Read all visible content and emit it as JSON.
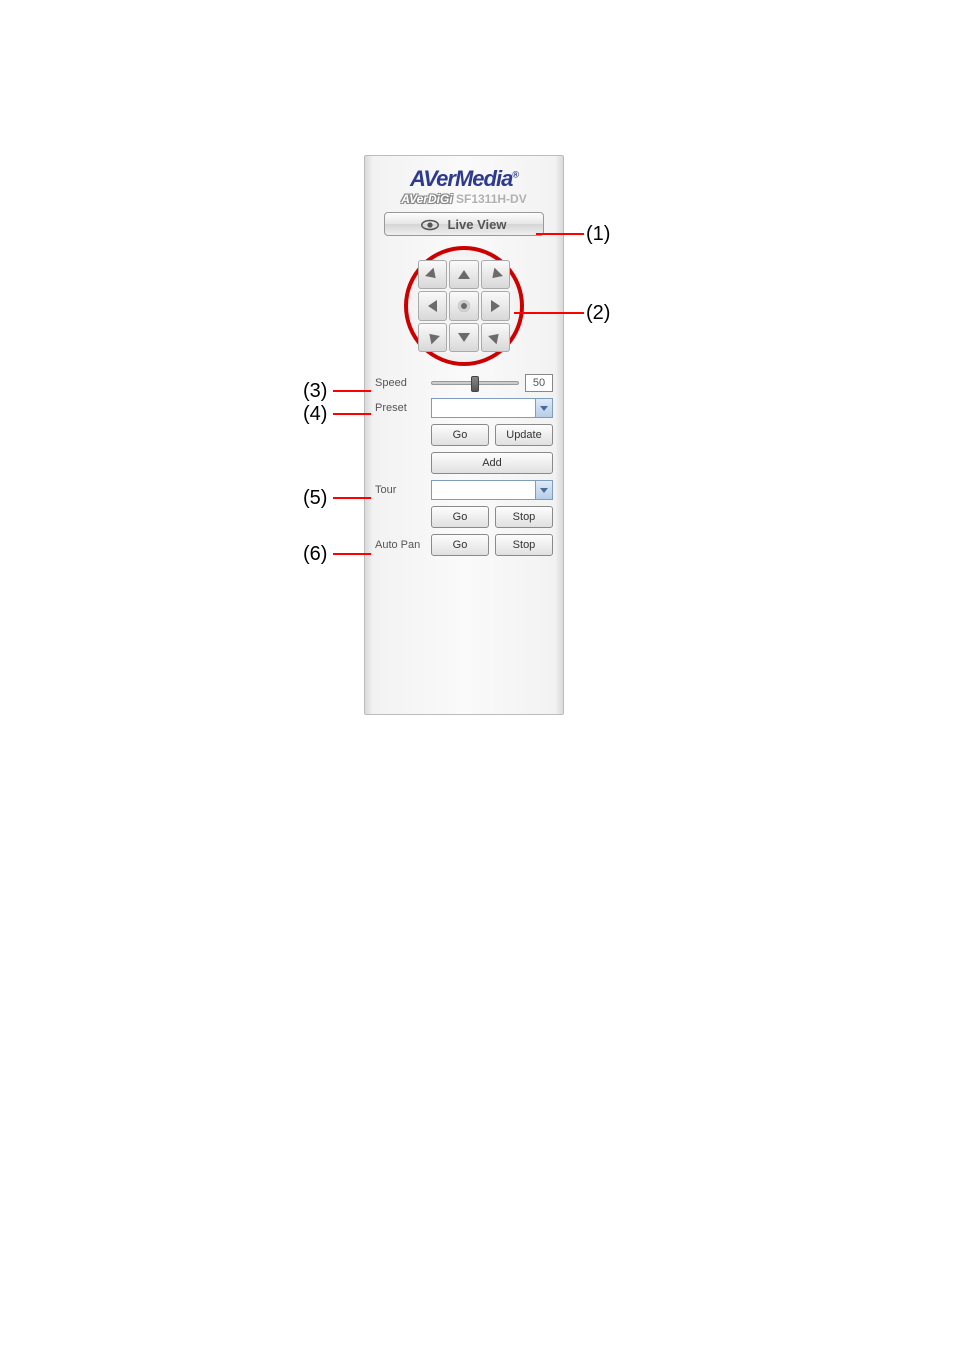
{
  "brand": {
    "main": "AVerMedia",
    "reg": "®",
    "sub_prefix": "AVerDiGi",
    "model": "SF1311H-DV"
  },
  "live_view": {
    "label": "Live View"
  },
  "speed": {
    "label": "Speed",
    "value": "50",
    "slider_percent": 50
  },
  "preset": {
    "label": "Preset",
    "selected": "",
    "go": "Go",
    "update": "Update",
    "add": "Add"
  },
  "tour": {
    "label": "Tour",
    "selected": "",
    "go": "Go",
    "stop": "Stop"
  },
  "autopan": {
    "label": "Auto Pan",
    "go": "Go",
    "stop": "Stop"
  },
  "callouts": {
    "c1": "(1)",
    "c2": "(2)",
    "c3": "(3)",
    "c4": "(4)",
    "c5": "(5)",
    "c6": "(6)"
  },
  "colors": {
    "ring": "#cd0000",
    "callout_line": "#ff0000",
    "brand": "#2e3a8f"
  }
}
